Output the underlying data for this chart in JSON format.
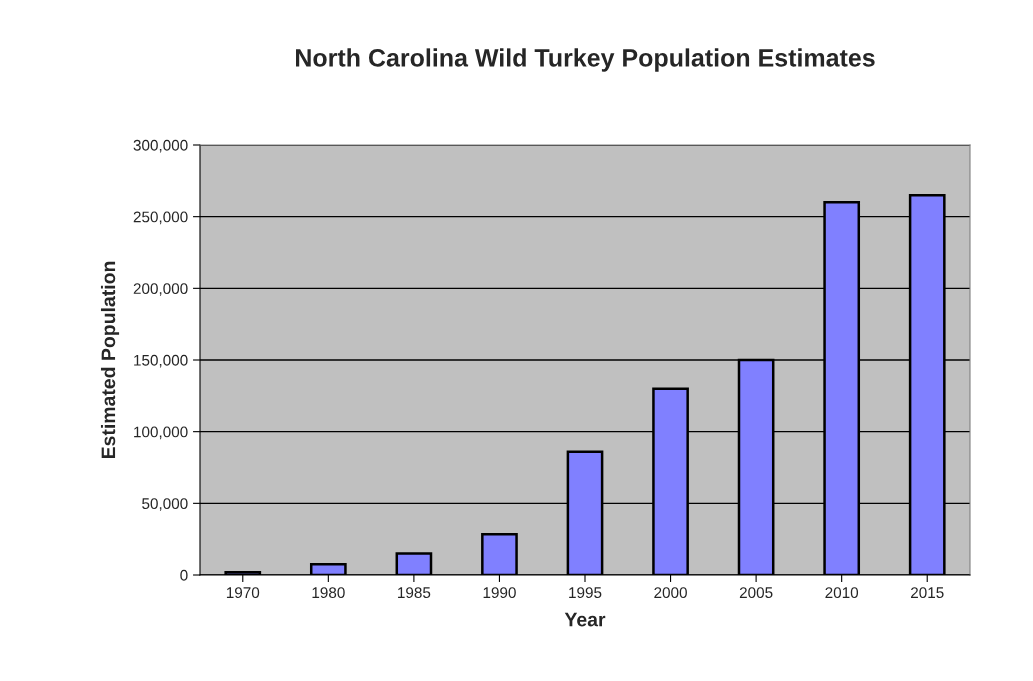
{
  "chart_data": {
    "type": "bar",
    "title": "North Carolina Wild Turkey Population Estimates",
    "xlabel": "Year",
    "ylabel": "Estimated Population",
    "categories": [
      "1970",
      "1980",
      "1985",
      "1990",
      "1995",
      "2000",
      "2005",
      "2010",
      "2015"
    ],
    "values": [
      2000,
      7500,
      15000,
      28500,
      86000,
      130000,
      150000,
      260000,
      265000
    ],
    "color": "#8080ff",
    "ylim": [
      0,
      300000
    ],
    "yticks": [
      {
        "value": 0,
        "label": "0"
      },
      {
        "value": 50000,
        "label": "50,000"
      },
      {
        "value": 100000,
        "label": "100,000"
      },
      {
        "value": 150000,
        "label": "150,000"
      },
      {
        "value": 200000,
        "label": "200,000"
      },
      {
        "value": 250000,
        "label": "250,000"
      },
      {
        "value": 300000,
        "label": "300,000"
      }
    ],
    "grid": "y"
  }
}
